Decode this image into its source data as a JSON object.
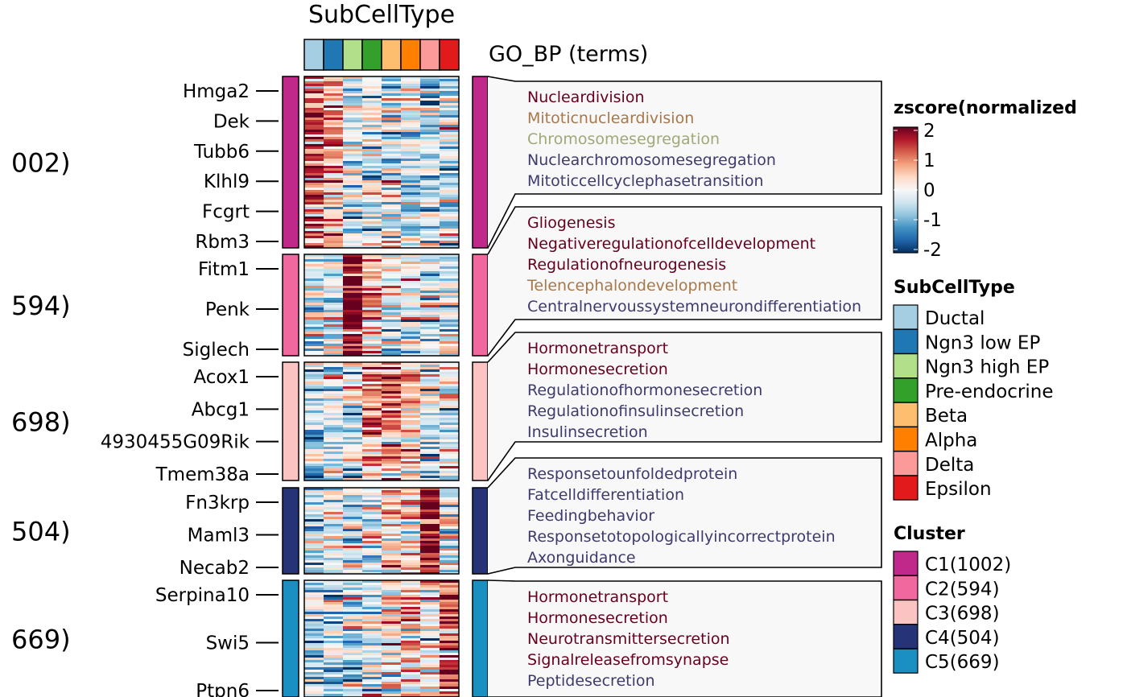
{
  "chart_data": {
    "type": "heatmap",
    "top_annotation_title": "SubCellType",
    "go_title": "GO_BP (terms)",
    "subcelltypes": [
      {
        "name": "Ductal",
        "color": "#A6CEE3"
      },
      {
        "name": "Ngn3 low EP",
        "color": "#1F78B4"
      },
      {
        "name": "Ngn3 high EP",
        "color": "#B2DF8A"
      },
      {
        "name": "Pre-endocrine",
        "color": "#33A02C"
      },
      {
        "name": "Beta",
        "color": "#FDBF6F"
      },
      {
        "name": "Alpha",
        "color": "#FF7F00"
      },
      {
        "name": "Delta",
        "color": "#FB9A99"
      },
      {
        "name": "Epsilon",
        "color": "#E31A1C"
      }
    ],
    "colorbar": {
      "title": "zscore(normalized",
      "ticks": [
        "2",
        "1",
        "0",
        "-1",
        "-2"
      ],
      "range": [
        -2,
        2
      ],
      "colors": [
        "#67001F",
        "#B2182B",
        "#D6604D",
        "#F4A582",
        "#FDDBC7",
        "#F7F7F7",
        "#D1E5F0",
        "#92C5DE",
        "#4393C3",
        "#2166AC",
        "#053061"
      ]
    },
    "clusters": [
      {
        "id": "C1(1002)",
        "row_label": "002)",
        "color": "#C0288A",
        "genes": [
          "Hmga2",
          "Dek",
          "Tubb6",
          "Klhl9",
          "Fcgrt",
          "Rbm3"
        ],
        "profile": [
          1.1,
          0.8,
          -0.2,
          -0.3,
          -0.4,
          -0.3,
          -0.5,
          -0.4
        ],
        "go_terms": [
          {
            "text": "Nucleardivision",
            "color": "#67001F"
          },
          {
            "text": "Mitoticnucleardivision",
            "color": "#A8774A"
          },
          {
            "text": "Chromosomesegregation",
            "color": "#A0A878"
          },
          {
            "text": "Nuclearchromosomesegregation",
            "color": "#3E3A6E"
          },
          {
            "text": "Mitoticcellcyclephasetransition",
            "color": "#3E3A6E"
          }
        ]
      },
      {
        "id": "C2(594)",
        "row_label": "594)",
        "color": "#F0689E",
        "genes": [
          "Fitm1",
          "Penk",
          "Siglech"
        ],
        "profile": [
          -0.3,
          -0.4,
          1.8,
          0.6,
          -0.3,
          -0.3,
          -0.3,
          -0.4
        ],
        "go_terms": [
          {
            "text": "Gliogenesis",
            "color": "#67001F"
          },
          {
            "text": "Negativeregulationofcelldevelopment",
            "color": "#67001F"
          },
          {
            "text": "Regulationofneurogenesis",
            "color": "#67001F"
          },
          {
            "text": "Telencephalondevelopment",
            "color": "#A8774A"
          },
          {
            "text": "Centralnervoussystemneurondifferentiation",
            "color": "#3E3A6E"
          }
        ]
      },
      {
        "id": "C3(698)",
        "row_label": "698)",
        "color": "#FBC4C3",
        "genes": [
          "Acox1",
          "Abcg1",
          "4930455G09Rik",
          "Tmem38a"
        ],
        "profile": [
          -0.5,
          -0.4,
          -0.2,
          0.6,
          0.9,
          0.3,
          -0.3,
          -0.4
        ],
        "go_terms": [
          {
            "text": "Hormonetransport",
            "color": "#67001F"
          },
          {
            "text": "Hormonesecretion",
            "color": "#67001F"
          },
          {
            "text": "Regulationofhormonesecretion",
            "color": "#3E3A6E"
          },
          {
            "text": "Regulationofinsulinsecretion",
            "color": "#3E3A6E"
          },
          {
            "text": "Insulinsecretion",
            "color": "#3E3A6E"
          }
        ]
      },
      {
        "id": "C4(504)",
        "row_label": "504)",
        "color": "#263477",
        "genes": [
          "Fn3krp",
          "Maml3",
          "Necab2"
        ],
        "profile": [
          -0.6,
          -0.4,
          -0.3,
          -0.2,
          0.1,
          0.0,
          1.9,
          -0.2
        ],
        "go_terms": [
          {
            "text": "Responsetounfoldedprotein",
            "color": "#3E3A6E"
          },
          {
            "text": "Fatcelldifferentiation",
            "color": "#3E3A6E"
          },
          {
            "text": "Feedingbehavior",
            "color": "#3E3A6E"
          },
          {
            "text": "Responsetotopologicallyincorrectprotein",
            "color": "#3E3A6E"
          },
          {
            "text": "Axonguidance",
            "color": "#3E3A6E"
          }
        ]
      },
      {
        "id": "C5(669)",
        "row_label": "669)",
        "color": "#1A8FC2",
        "genes": [
          "Serpina10",
          "Swi5",
          "Ptpn6"
        ],
        "profile": [
          -0.6,
          -0.5,
          -0.4,
          -0.2,
          0.3,
          0.6,
          0.2,
          1.3
        ],
        "go_terms": [
          {
            "text": "Hormonetransport",
            "color": "#67001F"
          },
          {
            "text": "Hormonesecretion",
            "color": "#67001F"
          },
          {
            "text": "Neurotransmittersecretion",
            "color": "#67001F"
          },
          {
            "text": "Signalreleasefromsynapse",
            "color": "#67001F"
          },
          {
            "text": "Peptidesecretion",
            "color": "#3E3A6E"
          }
        ]
      }
    ],
    "legend_titles": {
      "subcelltype": "SubCellType",
      "cluster": "Cluster"
    }
  }
}
